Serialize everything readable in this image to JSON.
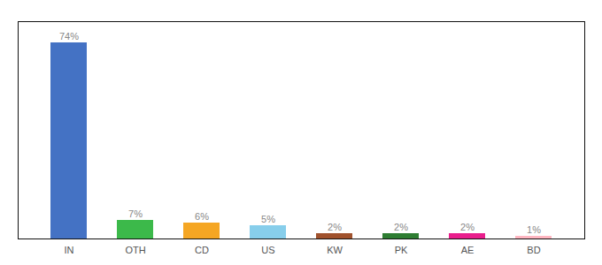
{
  "chart_data": {
    "type": "bar",
    "categories": [
      "IN",
      "OTH",
      "CD",
      "US",
      "KW",
      "PK",
      "AE",
      "BD"
    ],
    "values": [
      74,
      7,
      6,
      5,
      2,
      2,
      2,
      1
    ],
    "value_labels": [
      "74%",
      "7%",
      "6%",
      "5%",
      "2%",
      "2%",
      "2%",
      "1%"
    ],
    "colors": [
      "#4472c4",
      "#3cb94a",
      "#f5a623",
      "#87ceeb",
      "#a0522d",
      "#2e7d32",
      "#e91e8c",
      "#ffb6c1"
    ],
    "ylim": [
      0,
      82
    ],
    "data_labels": true,
    "tick_labels": "x",
    "grid": false
  }
}
